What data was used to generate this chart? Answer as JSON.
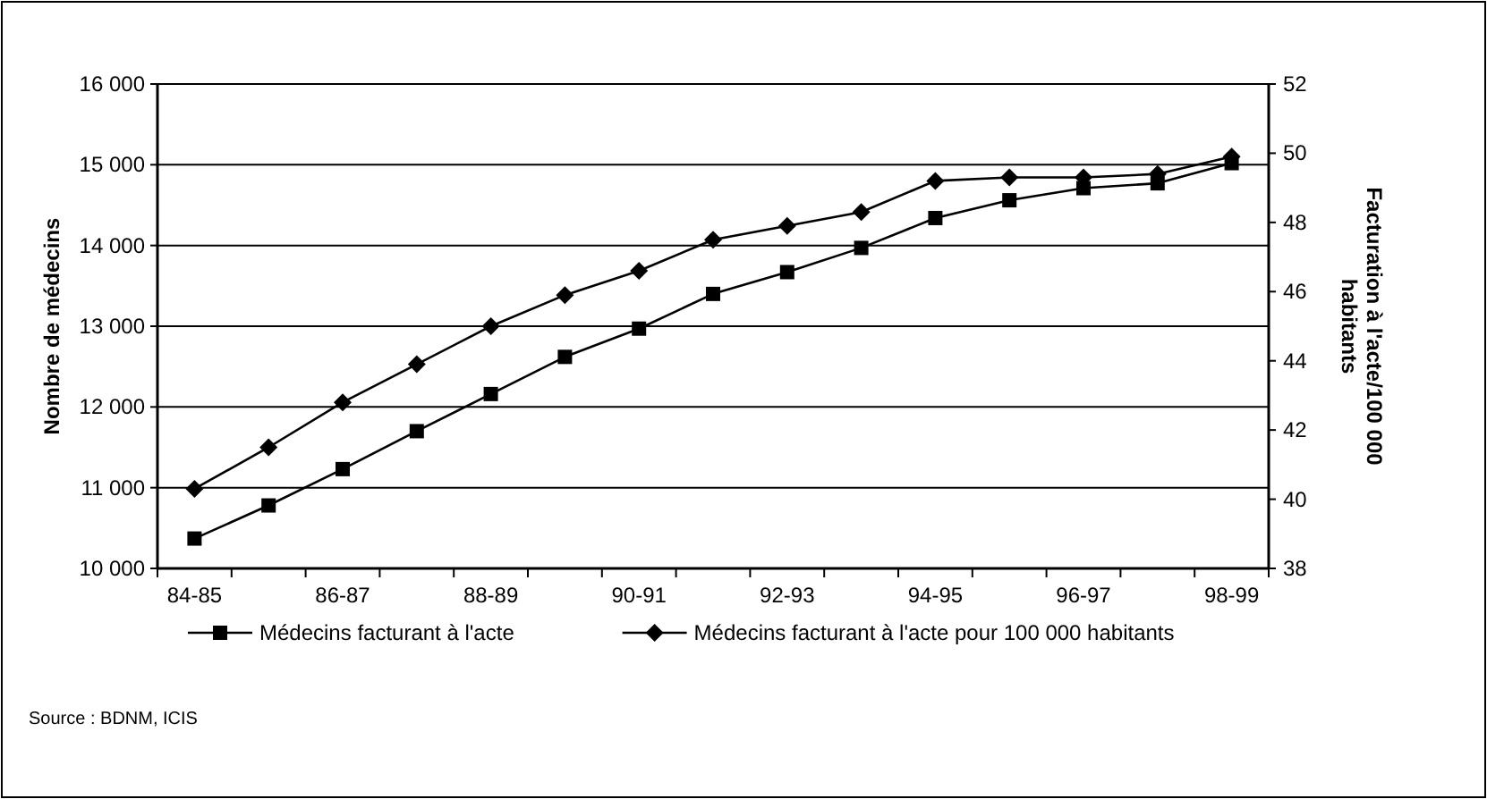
{
  "chart_data": {
    "type": "line",
    "ylabel": "Nombre de médecins",
    "y2label": "Facturation à l'acte/100 000 habitants",
    "categories": [
      "84-85",
      null,
      "86-87",
      null,
      "88-89",
      null,
      "90-91",
      null,
      "92-93",
      null,
      "94-95",
      null,
      "96-97",
      null,
      "98-99"
    ],
    "series": [
      {
        "name": "Médecins facturant à l'acte",
        "color": "#000000",
        "marker": "square",
        "values": [
          10370,
          10780,
          11230,
          11700,
          12160,
          12620,
          12970,
          13400,
          13670,
          13970,
          14340,
          14560,
          14710,
          14770,
          15020
        ]
      },
      {
        "name": "Médecins facturant à l'acte pour 100 000 habitants",
        "color": "#000000",
        "marker": "diamond",
        "axis": "y2",
        "values": [
          40.3,
          41.5,
          42.8,
          43.9,
          45.0,
          45.9,
          46.6,
          47.5,
          47.9,
          48.3,
          49.2,
          49.3,
          49.3,
          49.4,
          49.9
        ]
      }
    ],
    "ylim": [
      10000,
      16000
    ],
    "yticks": [
      {
        "value": 10000,
        "label": "10 000"
      },
      {
        "value": 11000,
        "label": "11 000"
      },
      {
        "value": 12000,
        "label": "12 000"
      },
      {
        "value": 13000,
        "label": "13 000"
      },
      {
        "value": 14000,
        "label": "14 000"
      },
      {
        "value": 15000,
        "label": "15 000"
      },
      {
        "value": 16000,
        "label": "16 000"
      }
    ],
    "y2lim": [
      38,
      52
    ],
    "y2ticks": [
      38,
      40,
      42,
      44,
      46,
      48,
      50,
      52
    ],
    "grid": "y",
    "legend": "bottom",
    "line_style": "solid",
    "annotations": [
      "Source : BDNM, ICIS"
    ]
  }
}
